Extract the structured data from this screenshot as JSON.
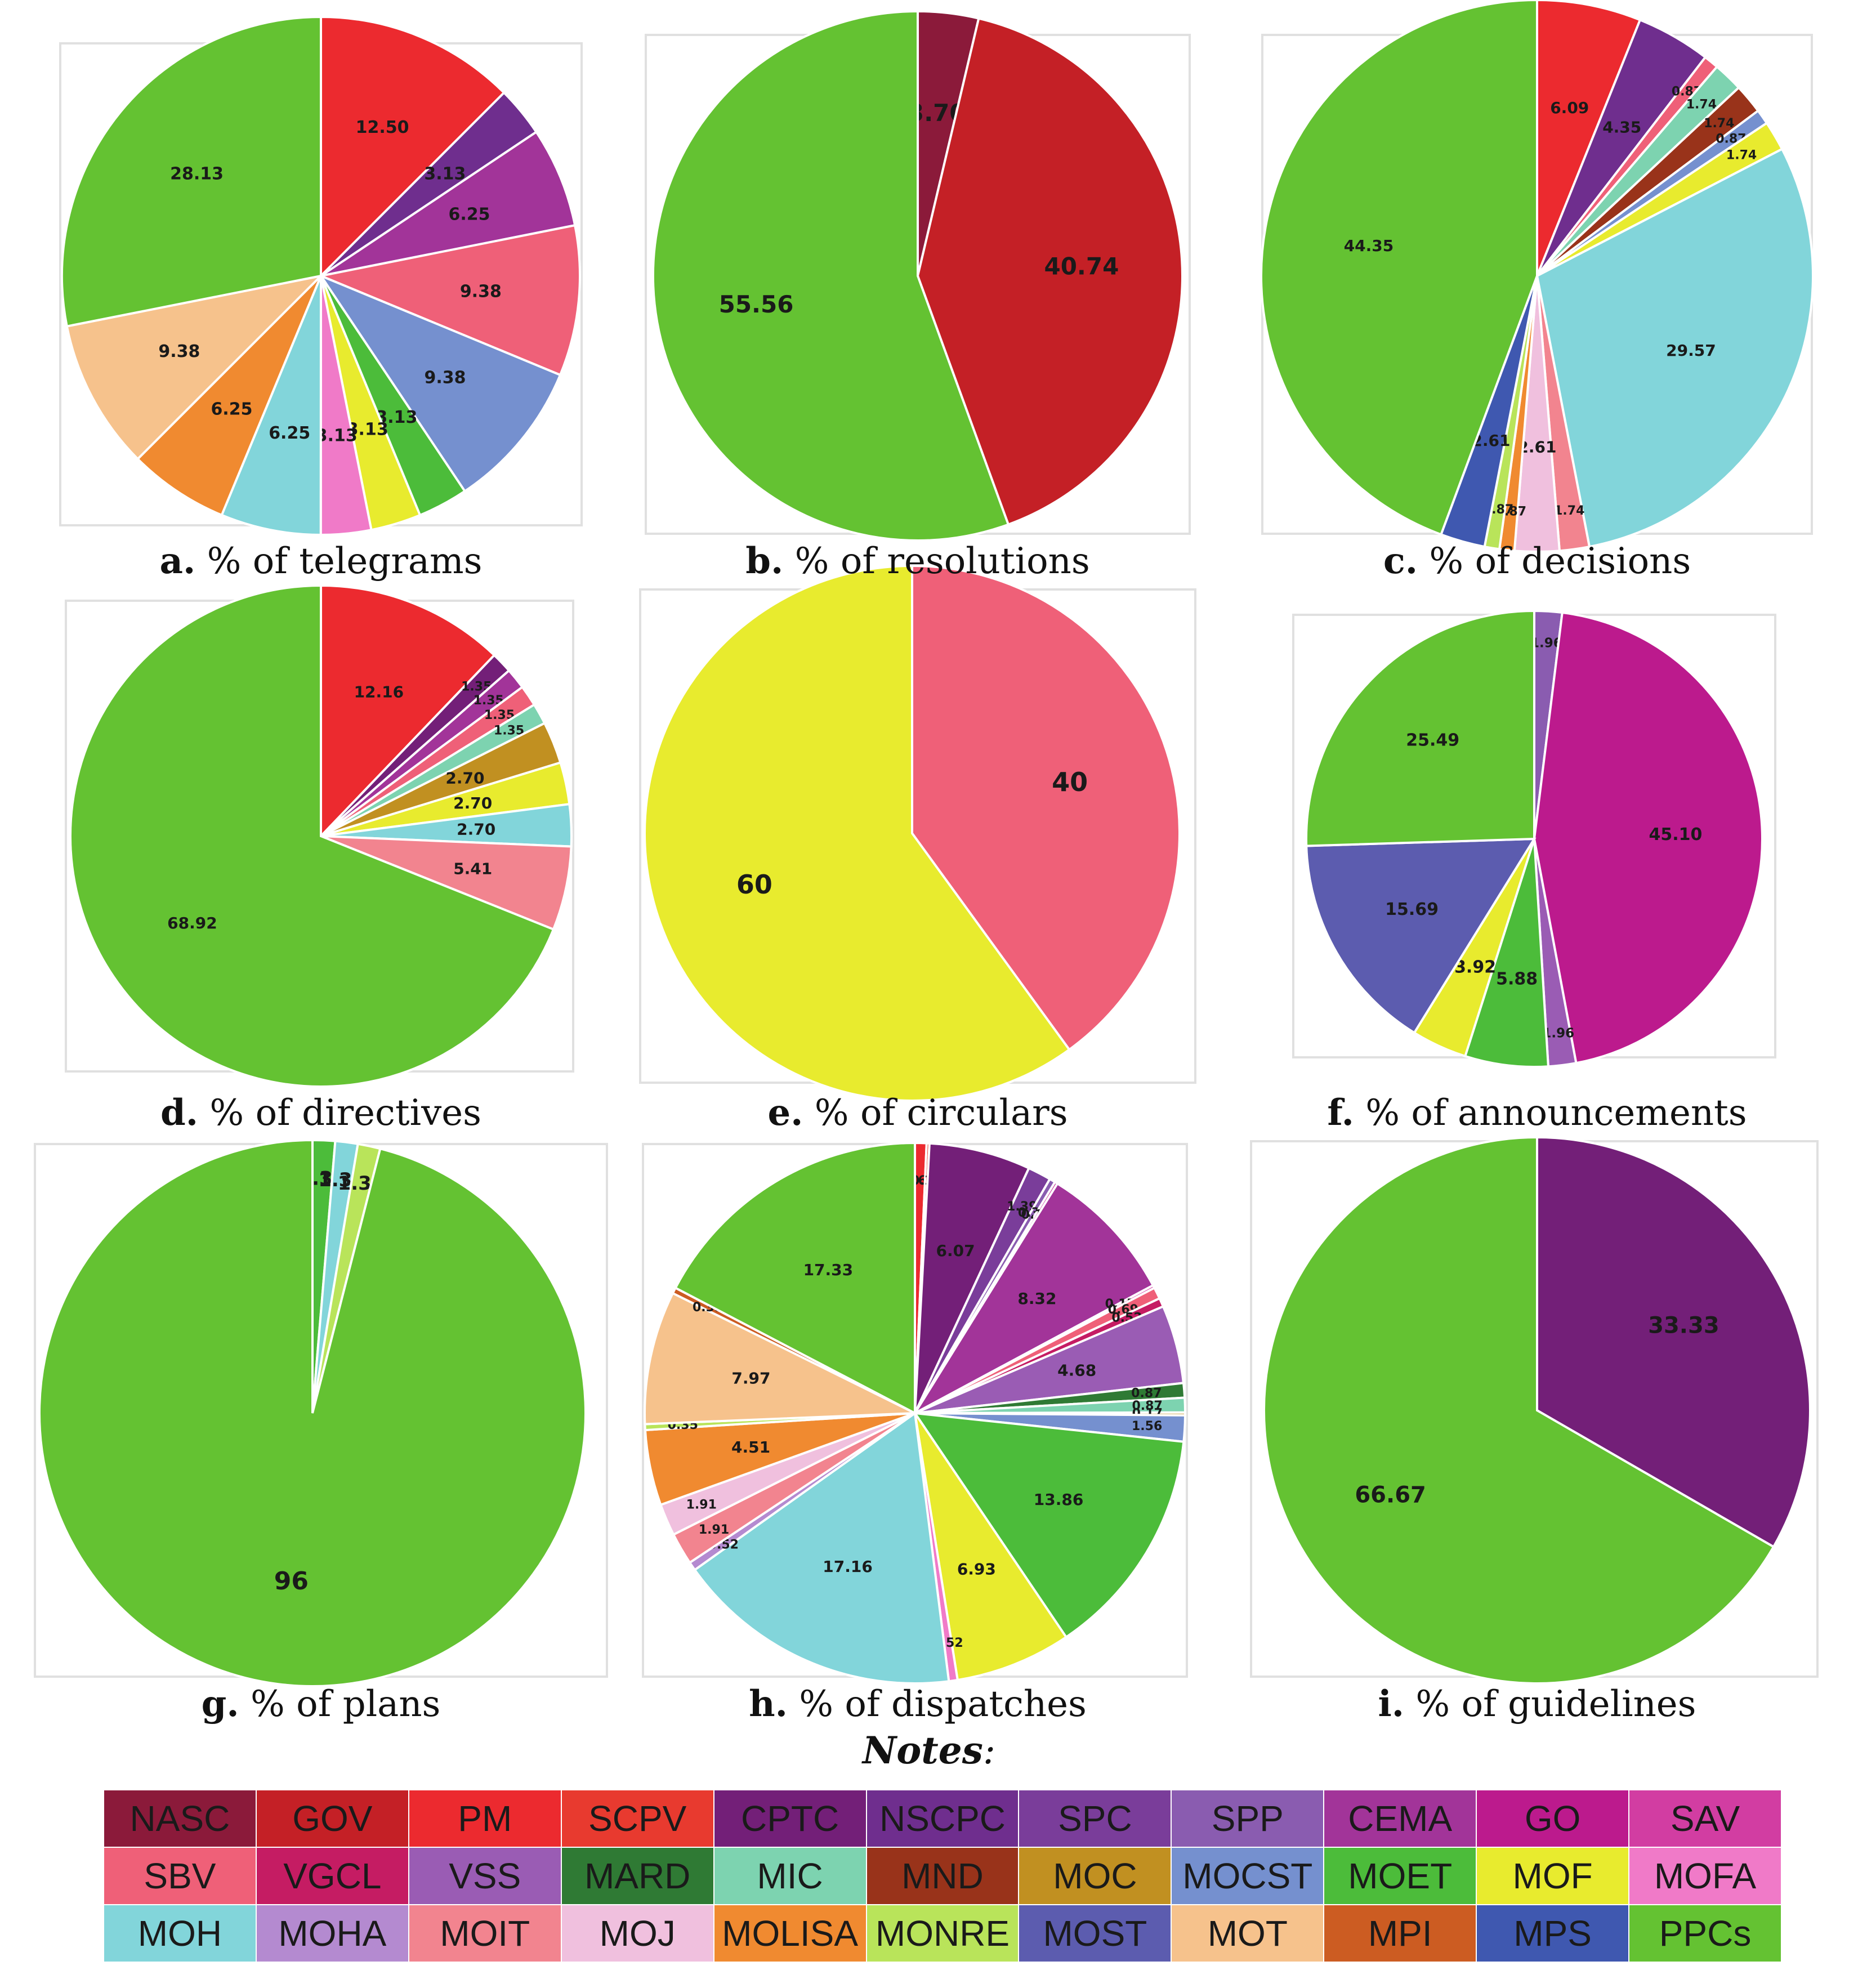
{
  "colors": {
    "NASC": "#8b1a3a",
    "GOV": "#c42026",
    "PM": "#ec2a2f",
    "SCPV": "#e83a2f",
    "CPTC": "#731f78",
    "NSCPC": "#6f2e8e",
    "SPC": "#7a3d9a",
    "SPP": "#8a5cb0",
    "CEMA": "#a23499",
    "GO": "#bc1a8d",
    "SAV": "#d23da2",
    "SBV": "#ef6078",
    "VGCL": "#c51c63",
    "VSS": "#9a5cb4",
    "MARD": "#2f7a34",
    "MIC": "#7dd3b0",
    "MND": "#99331a",
    "MOC": "#c19021",
    "MOCST": "#7590cf",
    "MOET": "#4cbc3a",
    "MOF": "#e8eb2e",
    "MOFA": "#f07ac8",
    "MOH": "#82d5da",
    "MOHA": "#b48ad0",
    "MOIT": "#f2848f",
    "MOJ": "#f0c0de",
    "MOLISA": "#f08a30",
    "MONRE": "#b9e45a",
    "MOST": "#5c5caf",
    "MOT": "#f6c28c",
    "MPI": "#cc5c22",
    "MPS": "#3f58b0",
    "PPCs": "#64c232"
  },
  "chart_data": [
    {
      "id": "a",
      "type": "pie",
      "letter": "a.",
      "title": "% of telegrams",
      "slices": [
        {
          "agency": "PM",
          "value": 12.5,
          "label": "12.50"
        },
        {
          "agency": "NSCPC",
          "value": 3.13,
          "label": "3.13"
        },
        {
          "agency": "CEMA",
          "value": 6.25,
          "label": "6.25"
        },
        {
          "agency": "SBV",
          "value": 9.38,
          "label": "9.38"
        },
        {
          "agency": "MOCST",
          "value": 9.38,
          "label": "9.38"
        },
        {
          "agency": "MOET",
          "value": 3.13,
          "label": "3.13"
        },
        {
          "agency": "MOF",
          "value": 3.13,
          "label": "3.13"
        },
        {
          "agency": "MOFA",
          "value": 3.13,
          "label": "3.13"
        },
        {
          "agency": "MOH",
          "value": 6.25,
          "label": "6.25"
        },
        {
          "agency": "MOLISA",
          "value": 6.25,
          "label": "6.25"
        },
        {
          "agency": "MOT",
          "value": 9.38,
          "label": "9.38"
        },
        {
          "agency": "PPCs",
          "value": 28.13,
          "label": "28.13"
        }
      ]
    },
    {
      "id": "b",
      "type": "pie",
      "letter": "b.",
      "title": "% of resolutions",
      "slices": [
        {
          "agency": "NASC",
          "value": 3.7,
          "label": "3.70"
        },
        {
          "agency": "GOV",
          "value": 40.74,
          "label": "40.74"
        },
        {
          "agency": "PPCs",
          "value": 55.56,
          "label": "55.56"
        }
      ]
    },
    {
      "id": "c",
      "type": "pie",
      "letter": "c.",
      "title": "% of decisions",
      "slices": [
        {
          "agency": "PM",
          "value": 6.09,
          "label": "6.09"
        },
        {
          "agency": "NSCPC",
          "value": 4.35,
          "label": "4.35"
        },
        {
          "agency": "SBV",
          "value": 0.87,
          "label": "0.87"
        },
        {
          "agency": "MIC",
          "value": 1.74,
          "label": "1.74"
        },
        {
          "agency": "MND",
          "value": 1.74,
          "label": "1.74"
        },
        {
          "agency": "MOCST",
          "value": 0.87,
          "label": "0.87"
        },
        {
          "agency": "MOF",
          "value": 1.74,
          "label": "1.74"
        },
        {
          "agency": "MOH",
          "value": 29.57,
          "label": "29.57"
        },
        {
          "agency": "MOIT",
          "value": 1.74,
          "label": "1.74"
        },
        {
          "agency": "MOJ",
          "value": 2.61,
          "label": "2.61"
        },
        {
          "agency": "MOLISA",
          "value": 0.87,
          "label": "0.87"
        },
        {
          "agency": "MONRE",
          "value": 0.87,
          "label": "0.87"
        },
        {
          "agency": "MPS",
          "value": 2.61,
          "label": "2.61"
        },
        {
          "agency": "PPCs",
          "value": 44.35,
          "label": "44.35"
        }
      ]
    },
    {
      "id": "d",
      "type": "pie",
      "letter": "d.",
      "title": "% of directives",
      "slices": [
        {
          "agency": "PM",
          "value": 12.16,
          "label": "12.16"
        },
        {
          "agency": "CPTC",
          "value": 1.35,
          "label": "1.35"
        },
        {
          "agency": "CEMA",
          "value": 1.35,
          "label": "1.35"
        },
        {
          "agency": "SBV",
          "value": 1.35,
          "label": "1.35"
        },
        {
          "agency": "MIC",
          "value": 1.35,
          "label": "1.35"
        },
        {
          "agency": "MOC",
          "value": 2.7,
          "label": "2.70"
        },
        {
          "agency": "MOF",
          "value": 2.7,
          "label": "2.70"
        },
        {
          "agency": "MOH",
          "value": 2.7,
          "label": "2.70"
        },
        {
          "agency": "MOIT",
          "value": 5.41,
          "label": "5.41"
        },
        {
          "agency": "PPCs",
          "value": 68.92,
          "label": "68.92"
        }
      ]
    },
    {
      "id": "e",
      "type": "pie",
      "letter": "e.",
      "title": "% of circulars",
      "slices": [
        {
          "agency": "SBV",
          "value": 40,
          "label": "40"
        },
        {
          "agency": "MOF",
          "value": 60,
          "label": "60"
        }
      ]
    },
    {
      "id": "f",
      "type": "pie",
      "letter": "f.",
      "title": "% of announcements",
      "slices": [
        {
          "agency": "SPP",
          "value": 1.96,
          "label": "1.96"
        },
        {
          "agency": "GO",
          "value": 45.1,
          "label": "45.10"
        },
        {
          "agency": "VSS",
          "value": 1.96,
          "label": "1.96"
        },
        {
          "agency": "MOET",
          "value": 5.88,
          "label": "5.88"
        },
        {
          "agency": "MOF",
          "value": 3.92,
          "label": "3.92"
        },
        {
          "agency": "MOST",
          "value": 15.69,
          "label": "15.69"
        },
        {
          "agency": "PPCs",
          "value": 25.49,
          "label": "25.49"
        }
      ]
    },
    {
      "id": "g",
      "type": "pie",
      "letter": "g.",
      "title": "% of plans",
      "slices": [
        {
          "agency": "MOET",
          "value": 1.33,
          "label": "1.33"
        },
        {
          "agency": "MOH",
          "value": 1.33,
          "label": "1.33"
        },
        {
          "agency": "MONRE",
          "value": 1.33,
          "label": "1.33"
        },
        {
          "agency": "PPCs",
          "value": 96,
          "label": "96"
        }
      ]
    },
    {
      "id": "h",
      "type": "pie",
      "letter": "h.",
      "title": "% of dispatches",
      "slices": [
        {
          "agency": "PM",
          "value": 0.69,
          "label": "0.69"
        },
        {
          "agency": "SCPV",
          "value": 0.17,
          "label": "0.17"
        },
        {
          "agency": "CPTC",
          "value": 6.07,
          "label": "6.07"
        },
        {
          "agency": "SPC",
          "value": 1.39,
          "label": "1.39"
        },
        {
          "agency": "SPP",
          "value": 0.35,
          "label": "0.35"
        },
        {
          "agency": "GO",
          "value": 0.17,
          "label": "0.17"
        },
        {
          "agency": "CEMA",
          "value": 8.32,
          "label": "8.32"
        },
        {
          "agency": "SAV",
          "value": 0.17,
          "label": "0.17"
        },
        {
          "agency": "SBV",
          "value": 0.69,
          "label": "0.69"
        },
        {
          "agency": "VGCL",
          "value": 0.52,
          "label": "0.52"
        },
        {
          "agency": "VSS",
          "value": 4.68,
          "label": "4.68"
        },
        {
          "agency": "MARD",
          "value": 0.87,
          "label": "0.87"
        },
        {
          "agency": "MIC",
          "value": 0.87,
          "label": "0.87"
        },
        {
          "agency": "MOC",
          "value": 0.17,
          "label": "0.17"
        },
        {
          "agency": "MOCST",
          "value": 1.56,
          "label": "1.56"
        },
        {
          "agency": "MOET",
          "value": 13.86,
          "label": "13.86"
        },
        {
          "agency": "MOF",
          "value": 6.93,
          "label": "6.93"
        },
        {
          "agency": "MOFA",
          "value": 0.52,
          "label": "0.52"
        },
        {
          "agency": "MOH",
          "value": 17.16,
          "label": "17.16"
        },
        {
          "agency": "MOHA",
          "value": 0.52,
          "label": "0.52"
        },
        {
          "agency": "MOIT",
          "value": 1.91,
          "label": "1.91"
        },
        {
          "agency": "MOJ",
          "value": 1.91,
          "label": "1.91"
        },
        {
          "agency": "MOLISA",
          "value": 4.51,
          "label": "4.51"
        },
        {
          "agency": "MONRE",
          "value": 0.35,
          "label": "0.35"
        },
        {
          "agency": "MOT",
          "value": 7.97,
          "label": "7.97"
        },
        {
          "agency": "MPI",
          "value": 0.35,
          "label": "0.35"
        },
        {
          "agency": "PPCs",
          "value": 17.33,
          "label": "17.33"
        }
      ]
    },
    {
      "id": "i",
      "type": "pie",
      "letter": "i.",
      "title": "% of guidelines",
      "slices": [
        {
          "agency": "CPTC",
          "value": 33.33,
          "label": "33.33"
        },
        {
          "agency": "PPCs",
          "value": 66.67,
          "label": "66.67"
        }
      ]
    }
  ],
  "notes_title": "Notes",
  "notes_suffix": ":",
  "legend": [
    "NASC",
    "GOV",
    "PM",
    "SCPV",
    "CPTC",
    "NSCPC",
    "SPC",
    "SPP",
    "CEMA",
    "GO",
    "SAV",
    "SBV",
    "VGCL",
    "VSS",
    "MARD",
    "MIC",
    "MND",
    "MOC",
    "MOCST",
    "MOET",
    "MOF",
    "MOFA",
    "MOH",
    "MOHA",
    "MOIT",
    "MOJ",
    "MOLISA",
    "MONRE",
    "MOST",
    "MOT",
    "MPI",
    "MPS",
    "PPCs"
  ]
}
